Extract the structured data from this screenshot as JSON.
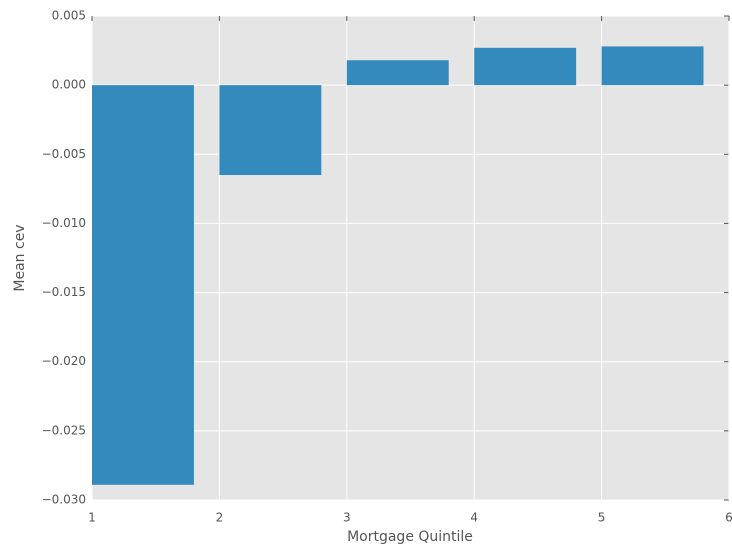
{
  "chart_data": {
    "type": "bar",
    "xlabel": "Mortgage Quintile",
    "ylabel": "Mean cev",
    "x": [
      1,
      2,
      3,
      4,
      5
    ],
    "values": [
      -0.0289,
      -0.0065,
      0.0018,
      0.0027,
      0.0028
    ],
    "color": "#348ABD",
    "xlim": [
      1,
      6
    ],
    "xticks": [
      1,
      2,
      3,
      4,
      5,
      6
    ],
    "ylim": [
      -0.03,
      0.005
    ],
    "yticks": [
      {
        "value": -0.03,
        "label": "−0.030"
      },
      {
        "value": -0.025,
        "label": "−0.025"
      },
      {
        "value": -0.02,
        "label": "−0.020"
      },
      {
        "value": -0.015,
        "label": "−0.015"
      },
      {
        "value": -0.01,
        "label": "−0.010"
      },
      {
        "value": -0.005,
        "label": "−0.005"
      },
      {
        "value": 0,
        "label": "0.000"
      },
      0.005
    ],
    "grid": true
  }
}
